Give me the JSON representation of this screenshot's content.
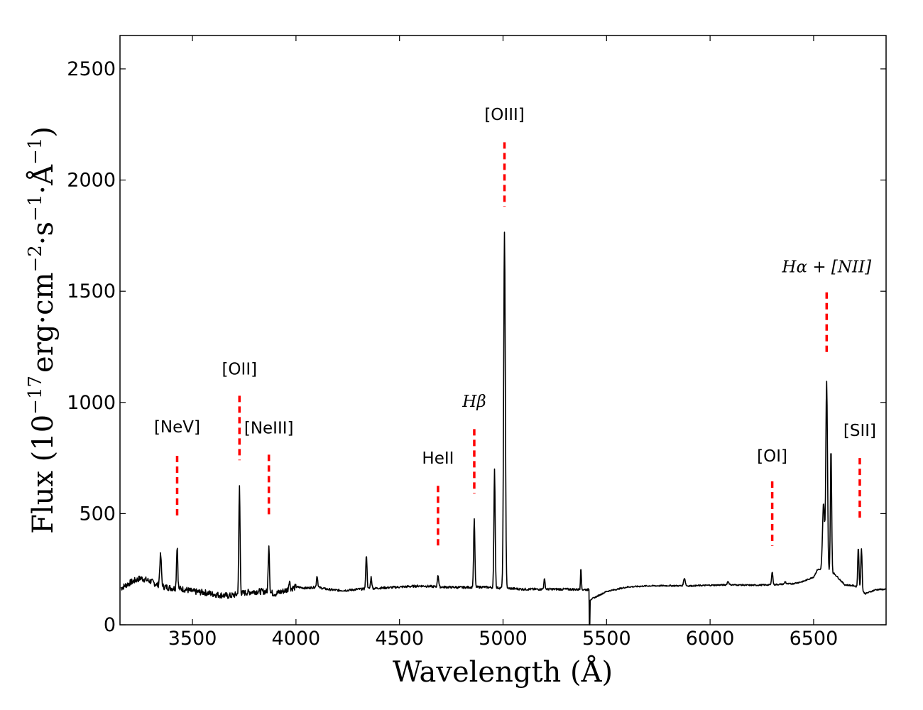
{
  "chart_data": {
    "type": "line",
    "title": "",
    "xlabel": "Wavelength (Å)",
    "ylabel": "Flux (10⁻¹⁷ erg·cm⁻²·s⁻¹·Å⁻¹)",
    "ylabel_parts": {
      "lead": "Flux (10",
      "exp1": "−17",
      "mid1": "erg·cm",
      "exp2": "−2",
      "mid2": "·s",
      "exp3": "−1",
      "mid3": "·Å",
      "exp4": "−1",
      "tail": ")"
    },
    "xlim": [
      3150,
      6850
    ],
    "ylim": [
      0,
      2650
    ],
    "xticks": [
      3500,
      4000,
      4500,
      5000,
      5500,
      6000,
      6500
    ],
    "yticks": [
      0,
      500,
      1000,
      1500,
      2000,
      2500
    ],
    "grid": false,
    "line_color": "#000000",
    "marker_color": "#ff0000",
    "continuum": [
      [
        3155,
        165
      ],
      [
        3200,
        190
      ],
      [
        3250,
        210
      ],
      [
        3300,
        195
      ],
      [
        3340,
        175
      ],
      [
        3400,
        165
      ],
      [
        3460,
        160
      ],
      [
        3500,
        150
      ],
      [
        3560,
        145
      ],
      [
        3620,
        135
      ],
      [
        3680,
        130
      ],
      [
        3760,
        145
      ],
      [
        3800,
        150
      ],
      [
        3850,
        150
      ],
      [
        3900,
        140
      ],
      [
        3950,
        155
      ],
      [
        4000,
        170
      ],
      [
        4050,
        165
      ],
      [
        4100,
        170
      ],
      [
        4150,
        160
      ],
      [
        4200,
        155
      ],
      [
        4250,
        155
      ],
      [
        4300,
        160
      ],
      [
        4400,
        165
      ],
      [
        4500,
        170
      ],
      [
        4600,
        175
      ],
      [
        4700,
        170
      ],
      [
        4800,
        168
      ],
      [
        4900,
        170
      ],
      [
        5000,
        165
      ],
      [
        5100,
        160
      ],
      [
        5200,
        160
      ],
      [
        5300,
        160
      ],
      [
        5418,
        158
      ],
      [
        5419,
        110
      ],
      [
        5420,
        112
      ],
      [
        5500,
        150
      ],
      [
        5600,
        170
      ],
      [
        5700,
        175
      ],
      [
        5800,
        176
      ],
      [
        5900,
        175
      ],
      [
        6000,
        178
      ],
      [
        6100,
        180
      ],
      [
        6200,
        178
      ],
      [
        6300,
        180
      ],
      [
        6400,
        185
      ],
      [
        6450,
        195
      ],
      [
        6500,
        215
      ],
      [
        6520,
        250
      ],
      [
        6600,
        230
      ],
      [
        6650,
        180
      ],
      [
        6700,
        175
      ],
      [
        6750,
        140
      ],
      [
        6800,
        158
      ],
      [
        6850,
        160
      ]
    ],
    "peaks": [
      {
        "x": 3346,
        "y": 315,
        "w": 4
      },
      {
        "x": 3426,
        "y": 355,
        "w": 3
      },
      {
        "x": 3727,
        "y": 625,
        "w": 3
      },
      {
        "x": 3869,
        "y": 362,
        "w": 3
      },
      {
        "x": 3968,
        "y": 200,
        "w": 3
      },
      {
        "x": 4102,
        "y": 220,
        "w": 3
      },
      {
        "x": 4340,
        "y": 317,
        "w": 3
      },
      {
        "x": 4363,
        "y": 215,
        "w": 3
      },
      {
        "x": 4686,
        "y": 225,
        "w": 3
      },
      {
        "x": 4861,
        "y": 478,
        "w": 3
      },
      {
        "x": 4959,
        "y": 705,
        "w": 3
      },
      {
        "x": 5007,
        "y": 1770,
        "w": 4
      },
      {
        "x": 5200,
        "y": 205,
        "w": 3
      },
      {
        "x": 5376,
        "y": 265,
        "w": 2
      },
      {
        "x": 5876,
        "y": 210,
        "w": 4
      },
      {
        "x": 6087,
        "y": 195,
        "w": 4
      },
      {
        "x": 6300,
        "y": 240,
        "w": 3
      },
      {
        "x": 6363,
        "y": 195,
        "w": 3
      },
      {
        "x": 6548,
        "y": 545,
        "w": 5
      },
      {
        "x": 6563,
        "y": 1090,
        "w": 4
      },
      {
        "x": 6584,
        "y": 800,
        "w": 3
      },
      {
        "x": 6716,
        "y": 350,
        "w": 3
      },
      {
        "x": 6731,
        "y": 345,
        "w": 3
      }
    ],
    "dip": {
      "x": 5418,
      "y": 0
    },
    "annotations": [
      {
        "label": "[NeV]",
        "math": false,
        "x": 3426,
        "line_top": 760,
        "line_bottom": 480,
        "text_y": 865
      },
      {
        "label": "[OII]",
        "math": false,
        "x": 3727,
        "line_top": 1030,
        "line_bottom": 740,
        "text_y": 1125
      },
      {
        "label": "[NeIII]",
        "math": false,
        "x": 3869,
        "line_top": 765,
        "line_bottom": 480,
        "text_y": 860
      },
      {
        "label": "HeII",
        "math": false,
        "x": 4686,
        "line_top": 625,
        "line_bottom": 345,
        "text_y": 725
      },
      {
        "label": "Hβ",
        "math": true,
        "x": 4861,
        "line_top": 880,
        "line_bottom": 590,
        "text_y": 980
      },
      {
        "label": "[OIII]",
        "math": false,
        "x": 5007,
        "line_top": 2170,
        "line_bottom": 1880,
        "text_y": 2270
      },
      {
        "label": "[OI]",
        "math": false,
        "x": 6300,
        "line_top": 645,
        "line_bottom": 355,
        "text_y": 735
      },
      {
        "label": "Hα + [NII]",
        "math": true,
        "x": 6563,
        "line_top": 1495,
        "line_bottom": 1210,
        "text_y": 1585
      },
      {
        "label": "[SII]",
        "math": false,
        "x": 6723,
        "line_top": 750,
        "line_bottom": 470,
        "text_y": 850
      }
    ]
  }
}
